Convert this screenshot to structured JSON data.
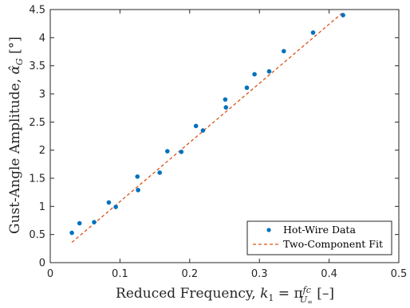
{
  "chart_data": {
    "type": "scatter",
    "xlabel": "Reduced Frequency, k₁ = π fc/U∞ [–]",
    "ylabel": "Gust-Angle Amplitude, α̂G [°]",
    "xlabel_parts": {
      "text": "Reduced Frequency, ",
      "k": "k",
      "sub": "1",
      "eq": " = π",
      "num": "fc",
      "den": "U",
      "den_sub": "∞",
      "unit": " [–]"
    },
    "ylabel_parts": {
      "text": "Gust-Angle Amplitude, ",
      "sym": "α̂",
      "sub": "G",
      "unit": " [°]"
    },
    "xlim": [
      0,
      0.5
    ],
    "ylim": [
      0,
      4.5
    ],
    "xticks": [
      "0",
      "0.1",
      "0.2",
      "0.3",
      "0.4",
      "0.5"
    ],
    "yticks": [
      "0",
      "0.5",
      "1",
      "1.5",
      "2",
      "2.5",
      "3",
      "3.5",
      "4",
      "4.5"
    ],
    "xtick_values": [
      0,
      0.1,
      0.2,
      0.3,
      0.4,
      0.5
    ],
    "ytick_values": [
      0,
      0.5,
      1,
      1.5,
      2,
      2.5,
      3,
      3.5,
      4,
      4.5
    ],
    "grid": false,
    "legend_position": "bottom-right",
    "series": [
      {
        "name": "Hot-Wire Data",
        "kind": "scatter",
        "color": "#0072BD",
        "x": [
          0.031,
          0.042,
          0.063,
          0.084,
          0.094,
          0.125,
          0.126,
          0.157,
          0.168,
          0.188,
          0.209,
          0.219,
          0.251,
          0.252,
          0.282,
          0.293,
          0.314,
          0.335,
          0.377,
          0.42
        ],
        "y": [
          0.53,
          0.7,
          0.72,
          1.07,
          0.99,
          1.53,
          1.29,
          1.6,
          1.98,
          1.97,
          2.43,
          2.35,
          2.9,
          2.76,
          3.11,
          3.35,
          3.4,
          3.76,
          4.09,
          4.4
        ]
      },
      {
        "name": "Two-Component Fit",
        "kind": "line",
        "style": "dashed",
        "color": "#D95319",
        "x": [
          0.031,
          0.42
        ],
        "y": [
          0.36,
          4.45
        ]
      }
    ]
  }
}
